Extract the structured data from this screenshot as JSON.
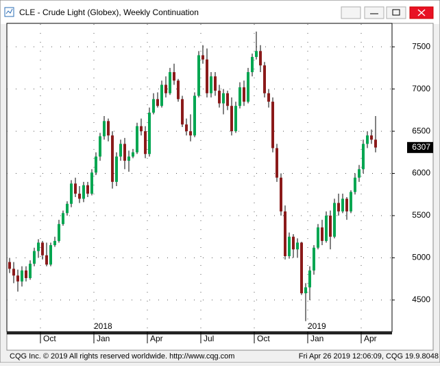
{
  "window": {
    "title": "CLE - Crude Light (Globex), Weekly Continuation",
    "footer_left": "CQG Inc. © 2019 All rights reserved worldwide. http://www.cqg.com",
    "footer_right": "Fri Apr 26 2019 12:06:09, CQG 19.9.8048"
  },
  "chart_data": {
    "type": "candlestick",
    "categories": [
      null,
      null,
      null,
      null,
      null,
      null,
      null,
      null,
      "Oct",
      null,
      null,
      null,
      null,
      null,
      null,
      null,
      null,
      null,
      null,
      null,
      null,
      "Jan",
      null,
      null,
      null,
      null,
      null,
      null,
      null,
      null,
      null,
      null,
      null,
      null,
      "Apr",
      null,
      null,
      null,
      null,
      null,
      null,
      null,
      null,
      null,
      null,
      null,
      null,
      "Jul",
      null,
      null,
      null,
      null,
      null,
      null,
      null,
      null,
      null,
      null,
      null,
      null,
      "Oct",
      null,
      null,
      null,
      null,
      null,
      null,
      null,
      null,
      null,
      null,
      null,
      null,
      "Jan",
      null,
      null,
      null,
      null,
      null,
      null,
      null,
      null,
      null,
      null,
      null,
      null,
      "Apr",
      null,
      null,
      null
    ],
    "category_years": [
      null,
      null,
      null,
      null,
      null,
      null,
      null,
      null,
      null,
      null,
      null,
      null,
      null,
      null,
      null,
      null,
      null,
      null,
      null,
      null,
      null,
      "2018",
      null,
      null,
      null,
      null,
      null,
      null,
      null,
      null,
      null,
      null,
      null,
      null,
      null,
      null,
      null,
      null,
      null,
      null,
      null,
      null,
      null,
      null,
      null,
      null,
      null,
      null,
      null,
      null,
      null,
      null,
      null,
      null,
      null,
      null,
      null,
      null,
      null,
      null,
      null,
      null,
      null,
      null,
      null,
      null,
      null,
      null,
      null,
      null,
      null,
      null,
      null,
      "2019",
      null,
      null,
      null,
      null,
      null,
      null,
      null,
      null,
      null,
      null,
      null,
      null,
      null,
      null,
      null,
      null
    ],
    "open": [
      4950,
      4870,
      4790,
      4720,
      4850,
      4760,
      4930,
      5080,
      5180,
      5030,
      4920,
      5150,
      5200,
      5400,
      5530,
      5640,
      5880,
      5760,
      5700,
      5860,
      5760,
      6010,
      6200,
      6440,
      6620,
      6450,
      5900,
      6200,
      6350,
      6150,
      6200,
      6250,
      6560,
      6500,
      6230,
      6720,
      6880,
      6800,
      7050,
      6950,
      7200,
      7100,
      6880,
      6580,
      6500,
      6450,
      6920,
      7400,
      7350,
      6950,
      7150,
      6980,
      6830,
      6950,
      6800,
      6500,
      6800,
      7020,
      6850,
      7200,
      7380,
      7450,
      7280,
      6950,
      6850,
      6300,
      5950,
      5550,
      5020,
      5250,
      5100,
      5180,
      4580,
      4650,
      4850,
      5120,
      5360,
      5200,
      5500,
      5250,
      5650,
      5550,
      5700,
      5550,
      5780,
      5950,
      6050,
      6350,
      6450,
      6400
    ],
    "high": [
      5000,
      4950,
      4860,
      4900,
      4900,
      4970,
      5120,
      5220,
      5200,
      5180,
      5180,
      5250,
      5450,
      5560,
      5670,
      5920,
      5950,
      5850,
      5900,
      5900,
      6050,
      6250,
      6480,
      6680,
      6650,
      6500,
      6250,
      6400,
      6420,
      6270,
      6290,
      6600,
      6650,
      6560,
      6780,
      6950,
      6960,
      7100,
      7150,
      7250,
      7300,
      7120,
      6920,
      6650,
      6700,
      6960,
      7450,
      7520,
      7480,
      7200,
      7200,
      7050,
      7000,
      6980,
      6900,
      6850,
      7080,
      7100,
      7250,
      7420,
      7680,
      7520,
      7320,
      7000,
      6900,
      6350,
      6000,
      5620,
      5300,
      5280,
      5230,
      5190,
      4700,
      4900,
      5150,
      5400,
      5450,
      5550,
      5560,
      5700,
      5760,
      5760,
      5720,
      5800,
      6000,
      6100,
      6400,
      6500,
      6520,
      6680
    ],
    "low": [
      4820,
      4700,
      4600,
      4660,
      4720,
      4740,
      4900,
      5000,
      4980,
      4900,
      4900,
      5130,
      5180,
      5380,
      5500,
      5600,
      5720,
      5650,
      5660,
      5720,
      5740,
      5980,
      6150,
      6400,
      6380,
      5820,
      5850,
      6150,
      6050,
      6020,
      6180,
      6230,
      6450,
      6180,
      6200,
      6700,
      6780,
      6780,
      6900,
      6930,
      7050,
      6850,
      6550,
      6450,
      6380,
      6430,
      6900,
      7300,
      6900,
      6900,
      6920,
      6780,
      6700,
      6750,
      6450,
      6480,
      6770,
      6800,
      6830,
      7150,
      7350,
      7200,
      6900,
      6780,
      6250,
      5900,
      5500,
      4980,
      4990,
      5000,
      5000,
      4560,
      4250,
      4500,
      4800,
      5100,
      5150,
      5180,
      5100,
      5230,
      5500,
      5530,
      5450,
      5530,
      5750,
      5900,
      6000,
      6300,
      6350,
      6250
    ],
    "close": [
      4870,
      4790,
      4720,
      4850,
      4760,
      4930,
      5080,
      5180,
      5030,
      4920,
      5150,
      5200,
      5400,
      5530,
      5640,
      5880,
      5760,
      5700,
      5860,
      5760,
      6010,
      6200,
      6440,
      6620,
      6450,
      5900,
      6200,
      6350,
      6150,
      6200,
      6250,
      6560,
      6500,
      6230,
      6720,
      6880,
      6800,
      7050,
      6950,
      7200,
      7100,
      6880,
      6580,
      6500,
      6450,
      6920,
      7400,
      7350,
      6950,
      7150,
      6980,
      6830,
      6950,
      6800,
      6500,
      6800,
      7020,
      6850,
      7200,
      7380,
      7450,
      7280,
      6950,
      6850,
      6300,
      5950,
      5550,
      5020,
      5250,
      5100,
      5180,
      4580,
      4650,
      4850,
      5120,
      5360,
      5200,
      5500,
      5250,
      5650,
      5550,
      5700,
      5550,
      5780,
      5950,
      6050,
      6350,
      6450,
      6400,
      6307
    ],
    "up_color": "#00a651",
    "down_color": "#8b1a1a",
    "last_price": 6307,
    "ylim": [
      4125,
      7770
    ],
    "yticks": [
      4500,
      5000,
      5500,
      6000,
      6500,
      7000,
      7500
    ],
    "grid": true
  }
}
